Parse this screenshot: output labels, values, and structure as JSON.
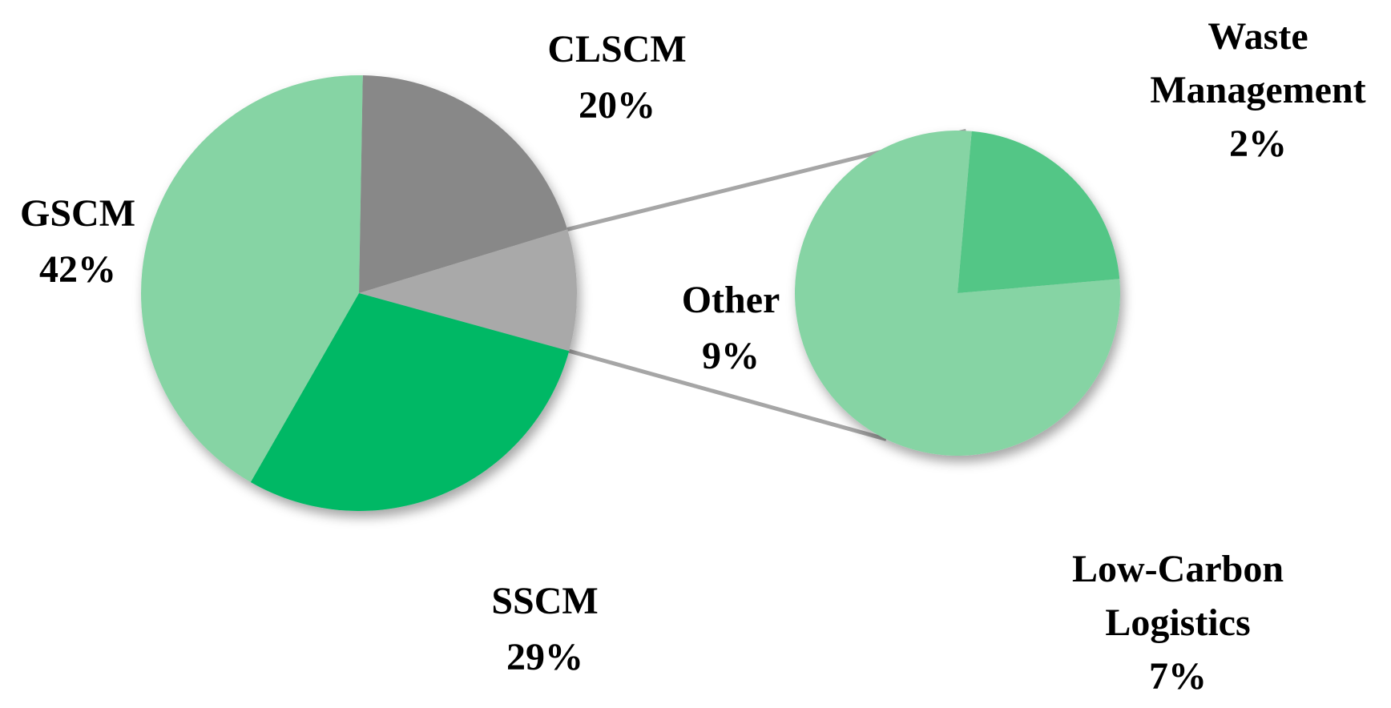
{
  "chart_data": {
    "type": "bar-of-pie",
    "main_pie": {
      "slices": [
        {
          "name": "CLSCM",
          "label": "CLSCM",
          "value_label": "20%",
          "value": 20,
          "color": "#888888"
        },
        {
          "name": "Other",
          "label": "Other",
          "value_label": "9%",
          "value": 9,
          "color": "#A9A9A9"
        },
        {
          "name": "SSCM",
          "label": "SSCM",
          "value_label": "29%",
          "value": 29,
          "color": "#00B865"
        },
        {
          "name": "GSCM",
          "label": "GSCM",
          "value_label": "42%",
          "value": 42,
          "color": "#86D4A4"
        }
      ]
    },
    "secondary_pie": {
      "parent_slice": "Other",
      "slices": [
        {
          "name": "Waste Management",
          "label_lines": [
            "Waste",
            "Management"
          ],
          "value_label": "2%",
          "value": 2,
          "color": "#52C686"
        },
        {
          "name": "Low-Carbon Logistics",
          "label_lines": [
            "Low-Carbon",
            "Logistics"
          ],
          "value_label": "7%",
          "value": 7,
          "color": "#86D4A4"
        }
      ]
    },
    "connector_color": "#A6A6A6"
  }
}
